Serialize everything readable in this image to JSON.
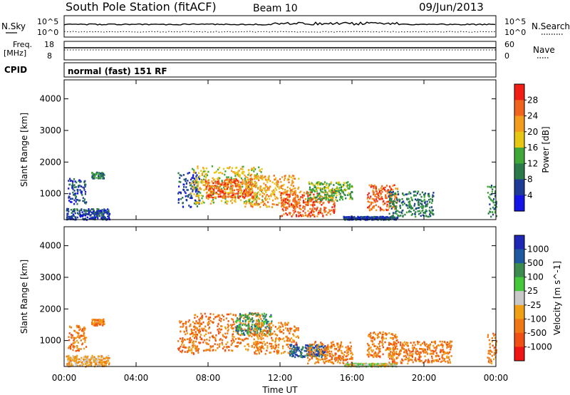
{
  "header": {
    "station": "South Pole Station (fitACF)",
    "beam": "Beam 10",
    "date": "09/Jun/2013"
  },
  "strips": {
    "nsky_label": "N.Sky",
    "nsearch_label": "N.Search",
    "freq_label_1": "Freq.",
    "freq_label_2": "[MHz]",
    "nave_label": "Nave",
    "cpid_label": "CPID",
    "cpid_value": "normal (fast) 151 RF",
    "noise_ticks_left": [
      "10^5",
      "10^0"
    ],
    "noise_ticks_right": [
      "10^5",
      "10^0"
    ],
    "freq_ticks": [
      "18",
      "8"
    ],
    "nave_ticks": [
      "60",
      "0"
    ]
  },
  "colors": {
    "power_scale": [
      "#1414e6",
      "#1e3c96",
      "#2a7a4a",
      "#3fa838",
      "#e6c814",
      "#f29b1c",
      "#f0641e",
      "#f01e14"
    ],
    "velocity_scale": [
      "#1e28b4",
      "#1e5aa0",
      "#3c8c50",
      "#46c83c",
      "#c8c8c8",
      "#f0a014",
      "#f07814",
      "#f05014",
      "#f01414"
    ]
  },
  "chart_data": [
    {
      "type": "heatmap",
      "title": "",
      "xlabel": "Time UT",
      "ylabel": "Slant Range [km]",
      "x_ticks": [
        "00:00",
        "04:00",
        "08:00",
        "12:00",
        "16:00",
        "20:00",
        "00:00"
      ],
      "y_ticks": [
        "1000",
        "2000",
        "3000",
        "4000"
      ],
      "xlim_hours": [
        0,
        24
      ],
      "ylim_km": [
        180,
        4600
      ],
      "colorbar_label": "Power [dB]",
      "colorbar_ticks": [
        "4",
        "8",
        "12",
        "16",
        "20",
        "24",
        "28"
      ],
      "regions": [
        {
          "t": [
            0.2,
            1.2
          ],
          "r": [
            700,
            1500
          ],
          "level": 1
        },
        {
          "t": [
            0.1,
            2.5
          ],
          "r": [
            200,
            550
          ],
          "level": 1
        },
        {
          "t": [
            1.5,
            2.2
          ],
          "r": [
            1500,
            1700
          ],
          "level": 2
        },
        {
          "t": [
            6.3,
            7.5
          ],
          "r": [
            600,
            1700
          ],
          "level": 1
        },
        {
          "t": [
            7.0,
            11.0
          ],
          "r": [
            700,
            1900
          ],
          "level": 4
        },
        {
          "t": [
            7.8,
            10.5
          ],
          "r": [
            900,
            1500
          ],
          "level": 6
        },
        {
          "t": [
            10.0,
            13.0
          ],
          "r": [
            600,
            1600
          ],
          "level": 5
        },
        {
          "t": [
            12.0,
            15.0
          ],
          "r": [
            300,
            1100
          ],
          "level": 6
        },
        {
          "t": [
            13.5,
            16.0
          ],
          "r": [
            800,
            1400
          ],
          "level": 3
        },
        {
          "t": [
            15.5,
            18.5
          ],
          "r": [
            200,
            300
          ],
          "level": 1
        },
        {
          "t": [
            16.8,
            18.5
          ],
          "r": [
            500,
            1300
          ],
          "level": 6
        },
        {
          "t": [
            18.0,
            20.5
          ],
          "r": [
            300,
            1100
          ],
          "level": 2
        },
        {
          "t": [
            23.5,
            24.0
          ],
          "r": [
            300,
            1300
          ],
          "level": 2
        }
      ]
    },
    {
      "type": "heatmap",
      "title": "",
      "xlabel": "Time UT",
      "ylabel": "Slant Range [km]",
      "x_ticks": [
        "00:00",
        "04:00",
        "08:00",
        "12:00",
        "16:00",
        "20:00",
        "00:00"
      ],
      "y_ticks": [
        "1000",
        "2000",
        "3000",
        "4000"
      ],
      "xlim_hours": [
        0,
        24
      ],
      "ylim_km": [
        180,
        4600
      ],
      "colorbar_label": "Velocity [m s^-1]",
      "colorbar_ticks": [
        "1000",
        "500",
        "100",
        "25",
        "-25",
        "-100",
        "-500",
        "-1000"
      ],
      "regions": [
        {
          "t": [
            0.2,
            1.2
          ],
          "r": [
            700,
            1500
          ],
          "level": 6
        },
        {
          "t": [
            0.1,
            2.5
          ],
          "r": [
            200,
            550
          ],
          "level": 5
        },
        {
          "t": [
            1.5,
            2.2
          ],
          "r": [
            1500,
            1700
          ],
          "level": 6
        },
        {
          "t": [
            6.3,
            7.5
          ],
          "r": [
            600,
            1700
          ],
          "level": 6
        },
        {
          "t": [
            7.0,
            11.0
          ],
          "r": [
            700,
            1900
          ],
          "level": 6
        },
        {
          "t": [
            9.5,
            11.5
          ],
          "r": [
            1200,
            1900
          ],
          "level": 2
        },
        {
          "t": [
            10.5,
            13.0
          ],
          "r": [
            600,
            1600
          ],
          "level": 6
        },
        {
          "t": [
            12.5,
            14.5
          ],
          "r": [
            500,
            900
          ],
          "level": 1
        },
        {
          "t": [
            13.5,
            16.0
          ],
          "r": [
            300,
            1000
          ],
          "level": 6
        },
        {
          "t": [
            15.5,
            18.5
          ],
          "r": [
            200,
            300
          ],
          "level": 4
        },
        {
          "t": [
            16.8,
            18.5
          ],
          "r": [
            500,
            1300
          ],
          "level": 6
        },
        {
          "t": [
            18.0,
            21.5
          ],
          "r": [
            300,
            1000
          ],
          "level": 6
        },
        {
          "t": [
            23.5,
            24.0
          ],
          "r": [
            300,
            1300
          ],
          "level": 6
        }
      ]
    }
  ]
}
